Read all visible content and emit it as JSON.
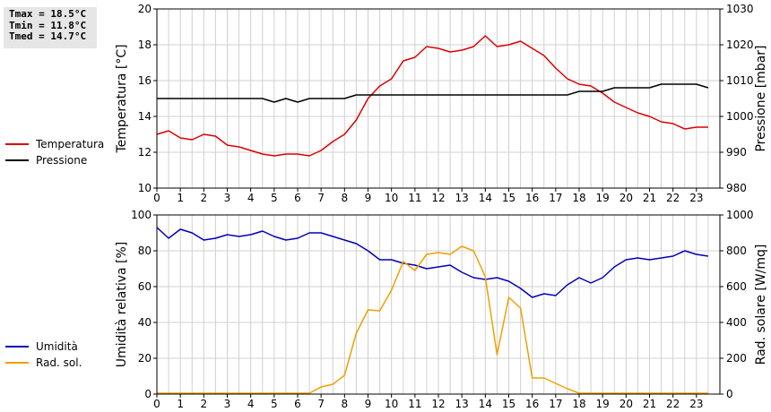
{
  "stats": {
    "tmax": "Tmax = 18.5°C",
    "tmin": "Tmin = 11.8°C",
    "tmed": "Tmed = 14.7°C"
  },
  "colors": {
    "temperatura": "#dd0000",
    "pressione": "#000000",
    "umidita": "#0000bb",
    "rad_sol": "#f0a000",
    "grid": "#d0d0d0"
  },
  "chart_data": [
    {
      "type": "line",
      "ylabel": "Temperatura [°C]",
      "y2label": "Pressione [mbar]",
      "xlim": [
        0,
        24
      ],
      "ylim": [
        10,
        20
      ],
      "y2lim": [
        980,
        1030
      ],
      "x_ticks": [
        "0",
        "1",
        "2",
        "3",
        "4",
        "5",
        "6",
        "7",
        "8",
        "9",
        "10",
        "11",
        "12",
        "13",
        "14",
        "15",
        "16",
        "17",
        "18",
        "19",
        "20",
        "21",
        "22",
        "23"
      ],
      "y_ticks": [
        "10",
        "12",
        "14",
        "16",
        "18",
        "20"
      ],
      "y2_ticks": [
        "980",
        "990",
        "1000",
        "1010",
        "1020",
        "1030"
      ],
      "legend_position": "left",
      "grid": true,
      "series": [
        {
          "name": "Temperatura",
          "axis": "left",
          "x": [
            0,
            0.5,
            1,
            1.5,
            2,
            2.5,
            3,
            3.5,
            4,
            4.5,
            5,
            5.5,
            6,
            6.5,
            7,
            7.5,
            8,
            8.5,
            9,
            9.5,
            10,
            10.5,
            11,
            11.5,
            12,
            12.5,
            13,
            13.5,
            14,
            14.5,
            15,
            15.5,
            16,
            16.5,
            17,
            17.5,
            18,
            18.5,
            19,
            19.5,
            20,
            20.5,
            21,
            21.5,
            22,
            22.5,
            23,
            23.5
          ],
          "values": [
            13.0,
            13.2,
            12.8,
            12.7,
            13.0,
            12.9,
            12.4,
            12.3,
            12.1,
            11.9,
            11.8,
            11.9,
            11.9,
            11.8,
            12.1,
            12.6,
            13.0,
            13.8,
            15.0,
            15.7,
            16.1,
            17.1,
            17.3,
            17.9,
            17.8,
            17.6,
            17.7,
            17.9,
            18.5,
            17.9,
            18.0,
            18.2,
            17.8,
            17.4,
            16.7,
            16.1,
            15.8,
            15.7,
            15.3,
            14.8,
            14.5,
            14.2,
            14.0,
            13.7,
            13.6,
            13.3,
            13.4,
            13.4
          ]
        },
        {
          "name": "Pressione",
          "axis": "right",
          "x": [
            0,
            0.5,
            1,
            1.5,
            2,
            2.5,
            3,
            3.5,
            4,
            4.5,
            5,
            5.5,
            6,
            6.5,
            7,
            7.5,
            8,
            8.5,
            9,
            9.5,
            10,
            10.5,
            11,
            11.5,
            12,
            12.5,
            13,
            13.5,
            14,
            14.5,
            15,
            15.5,
            16,
            16.5,
            17,
            17.5,
            18,
            18.5,
            19,
            19.5,
            20,
            20.5,
            21,
            21.5,
            22,
            22.5,
            23,
            23.5
          ],
          "values": [
            1005,
            1005,
            1005,
            1005,
            1005,
            1005,
            1005,
            1005,
            1005,
            1005,
            1004,
            1005,
            1004,
            1005,
            1005,
            1005,
            1005,
            1006,
            1006,
            1006,
            1006,
            1006,
            1006,
            1006,
            1006,
            1006,
            1006,
            1006,
            1006,
            1006,
            1006,
            1006,
            1006,
            1006,
            1006,
            1006,
            1007,
            1007,
            1007,
            1008,
            1008,
            1008,
            1008,
            1009,
            1009,
            1009,
            1009,
            1008
          ]
        }
      ]
    },
    {
      "type": "line",
      "ylabel": "Umidità relativa [%]",
      "y2label": "Rad. solare [W/mq]",
      "xlim": [
        0,
        24
      ],
      "ylim": [
        0,
        100
      ],
      "y2lim": [
        0,
        1000
      ],
      "x_ticks": [
        "0",
        "1",
        "2",
        "3",
        "4",
        "5",
        "6",
        "7",
        "8",
        "9",
        "10",
        "11",
        "12",
        "13",
        "14",
        "15",
        "16",
        "17",
        "18",
        "19",
        "20",
        "21",
        "22",
        "23"
      ],
      "y_ticks": [
        "0",
        "20",
        "40",
        "60",
        "80",
        "100"
      ],
      "y2_ticks": [
        "0",
        "200",
        "400",
        "600",
        "800",
        "1000"
      ],
      "legend_position": "left",
      "grid": true,
      "series": [
        {
          "name": "Umidità",
          "axis": "left",
          "x": [
            0,
            0.5,
            1,
            1.5,
            2,
            2.5,
            3,
            3.5,
            4,
            4.5,
            5,
            5.5,
            6,
            6.5,
            7,
            7.5,
            8,
            8.5,
            9,
            9.5,
            10,
            10.5,
            11,
            11.5,
            12,
            12.5,
            13,
            13.5,
            14,
            14.5,
            15,
            15.5,
            16,
            16.5,
            17,
            17.5,
            18,
            18.5,
            19,
            19.5,
            20,
            20.5,
            21,
            21.5,
            22,
            22.5,
            23,
            23.5
          ],
          "values": [
            93,
            87,
            92,
            90,
            86,
            87,
            89,
            88,
            89,
            91,
            88,
            86,
            87,
            90,
            90,
            88,
            86,
            84,
            80,
            75,
            75,
            73,
            72,
            70,
            71,
            72,
            68,
            65,
            64,
            65,
            63,
            59,
            54,
            56,
            55,
            61,
            65,
            62,
            65,
            71,
            75,
            76,
            75,
            76,
            77,
            80,
            78,
            77
          ]
        },
        {
          "name": "Rad. sol.",
          "axis": "right",
          "x": [
            0,
            0.5,
            1,
            1.5,
            2,
            2.5,
            3,
            3.5,
            4,
            4.5,
            5,
            5.5,
            6,
            6.5,
            7,
            7.5,
            8,
            8.5,
            9,
            9.5,
            10,
            10.5,
            11,
            11.5,
            12,
            12.5,
            13,
            13.5,
            14,
            14.5,
            15,
            15.5,
            16,
            16.5,
            17,
            17.5,
            18,
            18.5,
            19,
            19.5,
            20,
            20.5,
            21,
            21.5,
            22,
            22.5,
            23,
            23.5
          ],
          "values": [
            5,
            5,
            5,
            5,
            5,
            5,
            5,
            5,
            5,
            5,
            5,
            5,
            5,
            5,
            40,
            55,
            105,
            340,
            470,
            465,
            580,
            740,
            690,
            780,
            790,
            780,
            825,
            800,
            655,
            220,
            540,
            480,
            90,
            90,
            60,
            30,
            5,
            5,
            5,
            5,
            5,
            5,
            5,
            5,
            5,
            5,
            5,
            5
          ]
        }
      ]
    }
  ]
}
